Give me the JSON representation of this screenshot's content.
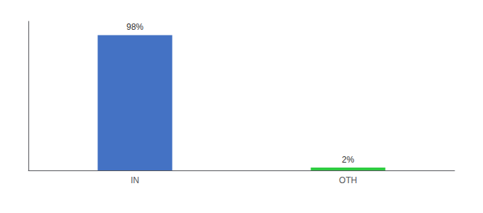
{
  "chart_data": {
    "type": "bar",
    "categories": [
      "IN",
      "OTH"
    ],
    "values": [
      98,
      2
    ],
    "value_labels": [
      "98%",
      "2%"
    ],
    "colors": [
      "#4472c4",
      "#2ecc40"
    ],
    "ylim": [
      0,
      108
    ],
    "grid": false,
    "data_labels": true,
    "tick_labels": "x"
  }
}
